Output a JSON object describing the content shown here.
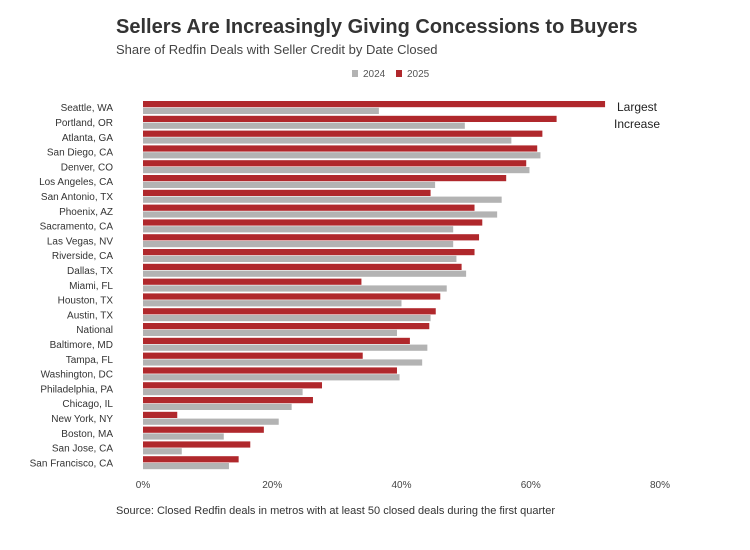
{
  "chart_data": {
    "type": "bar",
    "orientation": "horizontal",
    "title": "Sellers Are Increasingly Giving Concessions to Buyers",
    "subtitle": "Share of Redfin Deals with Seller Credit by Date Closed",
    "source": "Source: Closed Redfin deals in metros with at least 50 closed deals during the first quarter",
    "annotation": "Largest Increase",
    "annotation_lines": [
      "Largest",
      "Increase"
    ],
    "xlim": [
      0,
      80
    ],
    "xticks": [
      0,
      20,
      40,
      60,
      80
    ],
    "xtick_labels": [
      "0%",
      "20%",
      "40%",
      "60%",
      "80%"
    ],
    "legend_position": "top-center",
    "colors": {
      "2024": "#b3b3b3",
      "2025": "#b0282c"
    },
    "categories": [
      "Seattle, WA",
      "Portland, OR",
      "Atlanta, GA",
      "San Diego, CA",
      "Denver, CO",
      "Los Angeles, CA",
      "San Antonio, TX",
      "Phoenix, AZ",
      "Sacramento, CA",
      "Las Vegas, NV",
      "Riverside, CA",
      "Dallas, TX",
      "Miami, FL",
      "Houston, TX",
      "Austin, TX",
      "National",
      "Baltimore, MD",
      "Tampa, FL",
      "Washington, DC",
      "Philadelphia, PA",
      "Chicago, IL",
      "New York, NY",
      "Boston, MA",
      "San Jose, CA",
      "San Francisco, CA"
    ],
    "series": [
      {
        "name": "2025",
        "values": [
          71.5,
          64.0,
          61.8,
          61.0,
          59.3,
          56.2,
          44.5,
          51.3,
          52.5,
          52.0,
          51.3,
          49.3,
          33.8,
          46.0,
          45.3,
          44.3,
          41.3,
          34.0,
          39.3,
          27.7,
          26.3,
          5.3,
          18.7,
          16.6,
          14.8
        ]
      },
      {
        "name": "2024",
        "values": [
          36.5,
          49.8,
          57.0,
          61.5,
          59.8,
          45.2,
          55.5,
          54.8,
          48.0,
          48.0,
          48.5,
          50.0,
          47.0,
          40.0,
          44.5,
          39.3,
          44.0,
          43.2,
          39.7,
          24.7,
          23.0,
          21.0,
          12.5,
          6.0,
          13.3
        ]
      }
    ]
  }
}
